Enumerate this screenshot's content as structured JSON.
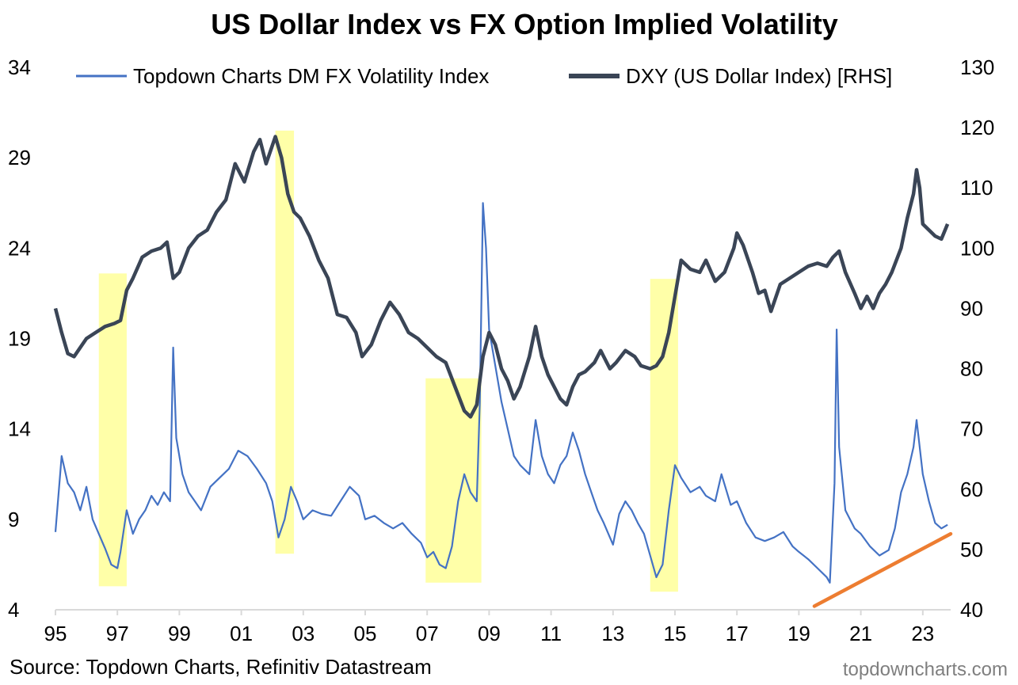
{
  "chart_data": {
    "type": "line",
    "title": "US Dollar Index vs FX Option Implied Volatility",
    "source": "Source: Topdown Charts, Refinitiv Datastream",
    "watermark": "topdowncharts.com",
    "x_ticks": [
      "95",
      "97",
      "99",
      "01",
      "03",
      "05",
      "07",
      "09",
      "11",
      "13",
      "15",
      "17",
      "19",
      "21",
      "23"
    ],
    "x_tick_years": [
      1995,
      1997,
      1999,
      2001,
      2003,
      2005,
      2007,
      2009,
      2011,
      2013,
      2015,
      2017,
      2019,
      2021,
      2023
    ],
    "xlim": [
      1995,
      2023.9
    ],
    "left_axis": {
      "ylim": [
        4,
        34
      ],
      "ticks": [
        "4",
        "9",
        "14",
        "19",
        "24",
        "29",
        "34"
      ]
    },
    "right_axis": {
      "ylim": [
        40,
        130
      ],
      "ticks": [
        "40",
        "50",
        "60",
        "70",
        "80",
        "90",
        "100",
        "110",
        "120",
        "130"
      ]
    },
    "colors": {
      "vol": "#4472C4",
      "dxy": "#3A4556",
      "highlight": "#FFFF99",
      "trend": "#ED7D31",
      "axis": "#D9D9D9",
      "watermark": "#7f7f7f"
    },
    "series": [
      {
        "name": "Topdown Charts DM FX Volatility Index",
        "axis": "left",
        "points": [
          [
            1995.0,
            8.3
          ],
          [
            1995.2,
            12.5
          ],
          [
            1995.4,
            11.0
          ],
          [
            1995.6,
            10.5
          ],
          [
            1995.8,
            9.5
          ],
          [
            1996.0,
            10.8
          ],
          [
            1996.2,
            9.0
          ],
          [
            1996.4,
            8.2
          ],
          [
            1996.6,
            7.4
          ],
          [
            1996.8,
            6.5
          ],
          [
            1997.0,
            6.3
          ],
          [
            1997.1,
            7.2
          ],
          [
            1997.3,
            9.5
          ],
          [
            1997.5,
            8.2
          ],
          [
            1997.7,
            9.0
          ],
          [
            1997.9,
            9.5
          ],
          [
            1998.1,
            10.3
          ],
          [
            1998.3,
            9.8
          ],
          [
            1998.5,
            10.5
          ],
          [
            1998.7,
            10.0
          ],
          [
            1998.8,
            18.5
          ],
          [
            1998.9,
            13.5
          ],
          [
            1999.1,
            11.5
          ],
          [
            1999.3,
            10.5
          ],
          [
            1999.5,
            10.0
          ],
          [
            1999.7,
            9.5
          ],
          [
            2000.0,
            10.8
          ],
          [
            2000.3,
            11.3
          ],
          [
            2000.6,
            11.8
          ],
          [
            2000.9,
            12.8
          ],
          [
            2001.2,
            12.5
          ],
          [
            2001.5,
            11.8
          ],
          [
            2001.8,
            11.0
          ],
          [
            2002.0,
            10.0
          ],
          [
            2002.2,
            8.0
          ],
          [
            2002.4,
            9.0
          ],
          [
            2002.6,
            10.8
          ],
          [
            2002.8,
            10.0
          ],
          [
            2003.0,
            9.0
          ],
          [
            2003.3,
            9.5
          ],
          [
            2003.6,
            9.3
          ],
          [
            2003.9,
            9.2
          ],
          [
            2004.2,
            10.0
          ],
          [
            2004.5,
            10.8
          ],
          [
            2004.8,
            10.3
          ],
          [
            2005.0,
            9.0
          ],
          [
            2005.3,
            9.2
          ],
          [
            2005.6,
            8.8
          ],
          [
            2005.9,
            8.5
          ],
          [
            2006.2,
            8.8
          ],
          [
            2006.5,
            8.2
          ],
          [
            2006.8,
            7.7
          ],
          [
            2007.0,
            6.9
          ],
          [
            2007.2,
            7.2
          ],
          [
            2007.4,
            6.5
          ],
          [
            2007.6,
            6.3
          ],
          [
            2007.8,
            7.5
          ],
          [
            2008.0,
            10.0
          ],
          [
            2008.2,
            11.5
          ],
          [
            2008.4,
            10.5
          ],
          [
            2008.6,
            10.0
          ],
          [
            2008.7,
            15.5
          ],
          [
            2008.8,
            26.5
          ],
          [
            2008.9,
            24.0
          ],
          [
            2009.0,
            19.5
          ],
          [
            2009.2,
            17.5
          ],
          [
            2009.4,
            15.5
          ],
          [
            2009.6,
            14.0
          ],
          [
            2009.8,
            12.5
          ],
          [
            2010.0,
            12.0
          ],
          [
            2010.3,
            11.5
          ],
          [
            2010.5,
            14.5
          ],
          [
            2010.7,
            12.5
          ],
          [
            2010.9,
            11.5
          ],
          [
            2011.1,
            11.0
          ],
          [
            2011.3,
            12.0
          ],
          [
            2011.5,
            12.5
          ],
          [
            2011.7,
            13.8
          ],
          [
            2011.9,
            12.8
          ],
          [
            2012.1,
            11.5
          ],
          [
            2012.3,
            10.5
          ],
          [
            2012.5,
            9.5
          ],
          [
            2012.7,
            8.8
          ],
          [
            2012.9,
            8.0
          ],
          [
            2013.0,
            7.6
          ],
          [
            2013.2,
            9.3
          ],
          [
            2013.4,
            10.0
          ],
          [
            2013.6,
            9.5
          ],
          [
            2013.8,
            8.8
          ],
          [
            2014.0,
            8.2
          ],
          [
            2014.2,
            7.0
          ],
          [
            2014.4,
            5.8
          ],
          [
            2014.6,
            6.5
          ],
          [
            2014.8,
            9.5
          ],
          [
            2015.0,
            12.0
          ],
          [
            2015.2,
            11.3
          ],
          [
            2015.5,
            10.5
          ],
          [
            2015.8,
            10.8
          ],
          [
            2016.0,
            10.3
          ],
          [
            2016.3,
            10.0
          ],
          [
            2016.5,
            11.5
          ],
          [
            2016.8,
            9.8
          ],
          [
            2017.0,
            10.0
          ],
          [
            2017.3,
            8.8
          ],
          [
            2017.6,
            8.0
          ],
          [
            2017.9,
            7.8
          ],
          [
            2018.2,
            8.0
          ],
          [
            2018.5,
            8.3
          ],
          [
            2018.8,
            7.5
          ],
          [
            2019.0,
            7.2
          ],
          [
            2019.3,
            6.8
          ],
          [
            2019.6,
            6.3
          ],
          [
            2019.9,
            5.8
          ],
          [
            2020.0,
            5.5
          ],
          [
            2020.15,
            11.0
          ],
          [
            2020.22,
            19.5
          ],
          [
            2020.3,
            13.0
          ],
          [
            2020.5,
            9.5
          ],
          [
            2020.8,
            8.5
          ],
          [
            2021.0,
            8.2
          ],
          [
            2021.3,
            7.5
          ],
          [
            2021.6,
            7.0
          ],
          [
            2021.9,
            7.3
          ],
          [
            2022.1,
            8.5
          ],
          [
            2022.3,
            10.5
          ],
          [
            2022.5,
            11.5
          ],
          [
            2022.7,
            13.0
          ],
          [
            2022.8,
            14.5
          ],
          [
            2023.0,
            11.5
          ],
          [
            2023.2,
            10.0
          ],
          [
            2023.4,
            8.8
          ],
          [
            2023.6,
            8.5
          ],
          [
            2023.8,
            8.7
          ]
        ]
      },
      {
        "name": "DXY (US Dollar Index) [RHS]",
        "axis": "right",
        "points": [
          [
            1995.0,
            90.0
          ],
          [
            1995.2,
            86.0
          ],
          [
            1995.4,
            82.5
          ],
          [
            1995.6,
            82.0
          ],
          [
            1995.8,
            83.5
          ],
          [
            1996.0,
            85.0
          ],
          [
            1996.3,
            86.0
          ],
          [
            1996.6,
            87.0
          ],
          [
            1996.9,
            87.5
          ],
          [
            1997.1,
            88.0
          ],
          [
            1997.3,
            93.0
          ],
          [
            1997.5,
            95.0
          ],
          [
            1997.8,
            98.5
          ],
          [
            1998.1,
            99.5
          ],
          [
            1998.4,
            100.0
          ],
          [
            1998.6,
            101.0
          ],
          [
            1998.8,
            95.0
          ],
          [
            1999.0,
            96.0
          ],
          [
            1999.3,
            100.0
          ],
          [
            1999.6,
            102.0
          ],
          [
            1999.9,
            103.0
          ],
          [
            2000.2,
            106.0
          ],
          [
            2000.5,
            108.0
          ],
          [
            2000.8,
            114.0
          ],
          [
            2001.1,
            111.0
          ],
          [
            2001.4,
            116.0
          ],
          [
            2001.6,
            118.0
          ],
          [
            2001.8,
            114.0
          ],
          [
            2002.1,
            118.5
          ],
          [
            2002.3,
            115.0
          ],
          [
            2002.5,
            109.0
          ],
          [
            2002.7,
            106.0
          ],
          [
            2002.9,
            105.0
          ],
          [
            2003.2,
            102.0
          ],
          [
            2003.5,
            98.0
          ],
          [
            2003.8,
            95.0
          ],
          [
            2004.1,
            89.0
          ],
          [
            2004.4,
            88.5
          ],
          [
            2004.7,
            86.0
          ],
          [
            2004.9,
            82.0
          ],
          [
            2005.2,
            84.0
          ],
          [
            2005.5,
            88.0
          ],
          [
            2005.8,
            91.0
          ],
          [
            2006.1,
            89.0
          ],
          [
            2006.4,
            86.0
          ],
          [
            2006.7,
            85.0
          ],
          [
            2007.0,
            83.5
          ],
          [
            2007.3,
            82.0
          ],
          [
            2007.6,
            81.0
          ],
          [
            2007.9,
            77.0
          ],
          [
            2008.2,
            73.0
          ],
          [
            2008.4,
            72.0
          ],
          [
            2008.6,
            74.0
          ],
          [
            2008.8,
            82.0
          ],
          [
            2009.0,
            86.0
          ],
          [
            2009.2,
            84.0
          ],
          [
            2009.4,
            80.0
          ],
          [
            2009.6,
            78.0
          ],
          [
            2009.8,
            75.0
          ],
          [
            2010.0,
            77.0
          ],
          [
            2010.3,
            82.0
          ],
          [
            2010.5,
            87.0
          ],
          [
            2010.7,
            82.0
          ],
          [
            2010.9,
            79.0
          ],
          [
            2011.1,
            77.0
          ],
          [
            2011.3,
            75.0
          ],
          [
            2011.5,
            74.0
          ],
          [
            2011.7,
            77.0
          ],
          [
            2011.9,
            79.0
          ],
          [
            2012.1,
            79.5
          ],
          [
            2012.4,
            81.0
          ],
          [
            2012.6,
            83.0
          ],
          [
            2012.9,
            80.0
          ],
          [
            2013.1,
            81.0
          ],
          [
            2013.4,
            83.0
          ],
          [
            2013.7,
            82.0
          ],
          [
            2013.9,
            80.5
          ],
          [
            2014.2,
            80.0
          ],
          [
            2014.4,
            80.5
          ],
          [
            2014.6,
            82.0
          ],
          [
            2014.8,
            86.0
          ],
          [
            2015.0,
            92.0
          ],
          [
            2015.2,
            98.0
          ],
          [
            2015.5,
            96.5
          ],
          [
            2015.8,
            96.0
          ],
          [
            2016.0,
            98.0
          ],
          [
            2016.3,
            94.5
          ],
          [
            2016.6,
            96.0
          ],
          [
            2016.9,
            100.0
          ],
          [
            2017.0,
            102.5
          ],
          [
            2017.2,
            100.5
          ],
          [
            2017.5,
            96.0
          ],
          [
            2017.7,
            92.5
          ],
          [
            2017.9,
            93.0
          ],
          [
            2018.1,
            89.5
          ],
          [
            2018.4,
            94.0
          ],
          [
            2018.7,
            95.0
          ],
          [
            2019.0,
            96.0
          ],
          [
            2019.3,
            97.0
          ],
          [
            2019.6,
            97.5
          ],
          [
            2019.9,
            97.0
          ],
          [
            2020.1,
            98.5
          ],
          [
            2020.3,
            99.5
          ],
          [
            2020.5,
            96.0
          ],
          [
            2020.8,
            92.5
          ],
          [
            2021.0,
            90.0
          ],
          [
            2021.2,
            92.0
          ],
          [
            2021.4,
            90.0
          ],
          [
            2021.6,
            92.5
          ],
          [
            2021.8,
            94.0
          ],
          [
            2022.0,
            96.0
          ],
          [
            2022.3,
            100.0
          ],
          [
            2022.5,
            105.0
          ],
          [
            2022.7,
            109.0
          ],
          [
            2022.8,
            113.0
          ],
          [
            2022.9,
            110.0
          ],
          [
            2023.0,
            104.0
          ],
          [
            2023.2,
            103.0
          ],
          [
            2023.4,
            102.0
          ],
          [
            2023.6,
            101.5
          ],
          [
            2023.8,
            104.0
          ]
        ]
      }
    ],
    "highlights": [
      {
        "x0": 1996.4,
        "x1": 1997.3,
        "y_top": 22.6,
        "y_bottom": 5.3
      },
      {
        "x0": 2002.1,
        "x1": 2002.7,
        "y_top": 30.5,
        "y_bottom": 7.1
      },
      {
        "x0": 2006.95,
        "x1": 2008.75,
        "y_top": 16.8,
        "y_bottom": 5.5
      },
      {
        "x0": 2014.2,
        "x1": 2015.1,
        "y_top": 22.3,
        "y_bottom": 5.0
      }
    ],
    "trend_line": {
      "axis": "left",
      "x0": 2019.5,
      "y0": 4.2,
      "x1": 2023.9,
      "y1": 8.2
    }
  }
}
